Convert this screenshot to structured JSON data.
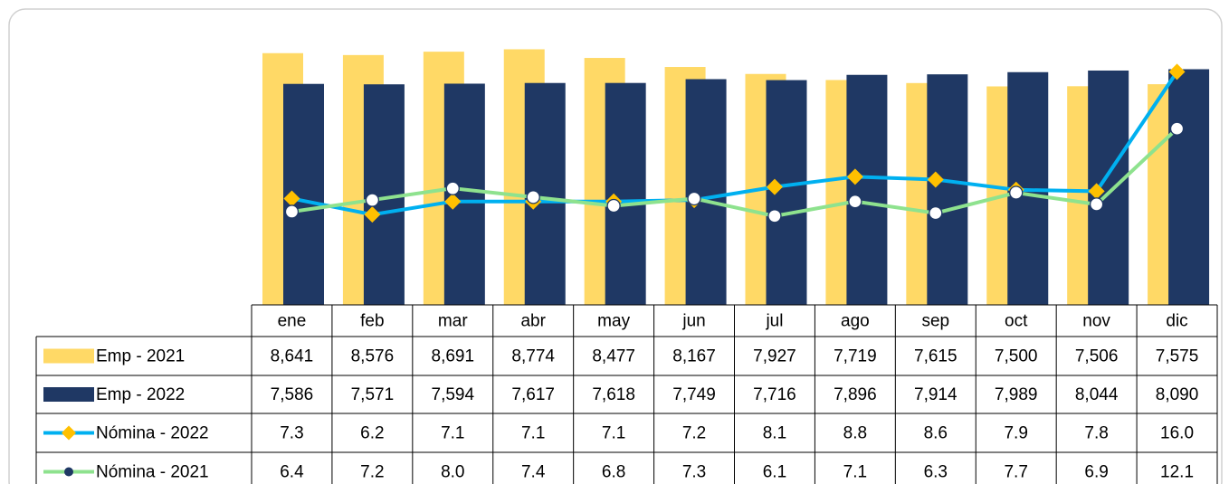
{
  "chart_data": {
    "type": "bar_line_table",
    "categories": [
      "ene",
      "feb",
      "mar",
      "abr",
      "may",
      "jun",
      "jul",
      "ago",
      "sep",
      "oct",
      "nov",
      "dic"
    ],
    "ylim": [
      0,
      10000
    ],
    "y2lim": [
      0,
      20
    ],
    "series": [
      {
        "name": "Emp - 2021",
        "kind": "bar",
        "color": "#FFD966",
        "values": [
          8641,
          8576,
          8691,
          8774,
          8477,
          8167,
          7927,
          7719,
          7615,
          7500,
          7506,
          7575
        ],
        "value_labels": [
          "8,641",
          "8,576",
          "8,691",
          "8,774",
          "8,477",
          "8,167",
          "7,927",
          "7,719",
          "7,615",
          "7,500",
          "7,506",
          "7,575"
        ]
      },
      {
        "name": "Emp - 2022",
        "kind": "bar",
        "color": "#1F3864",
        "values": [
          7586,
          7571,
          7594,
          7617,
          7618,
          7749,
          7716,
          7896,
          7914,
          7989,
          8044,
          8090
        ],
        "value_labels": [
          "7,586",
          "7,571",
          "7,594",
          "7,617",
          "7,618",
          "7,749",
          "7,716",
          "7,896",
          "7,914",
          "7,989",
          "8,044",
          "8,090"
        ]
      },
      {
        "name": "Nómina  - 2022",
        "kind": "line",
        "axis": "y2",
        "color": "#00B0F0",
        "marker_color": "#FFC000",
        "values": [
          7.3,
          6.2,
          7.1,
          7.1,
          7.1,
          7.2,
          8.1,
          8.8,
          8.6,
          7.9,
          7.8,
          16.0
        ],
        "value_labels": [
          "7.3",
          "6.2",
          "7.1",
          "7.1",
          "7.1",
          "7.2",
          "8.1",
          "8.8",
          "8.6",
          "7.9",
          "7.8",
          "16.0"
        ]
      },
      {
        "name": "Nómina  - 2021",
        "kind": "line",
        "axis": "y2",
        "color": "#8EE28E",
        "marker_color": "#1F3864",
        "values": [
          6.4,
          7.2,
          8.0,
          7.4,
          6.8,
          7.3,
          6.1,
          7.1,
          6.3,
          7.7,
          6.9,
          12.1
        ],
        "value_labels": [
          "6.4",
          "7.2",
          "8.0",
          "7.4",
          "6.8",
          "7.3",
          "6.1",
          "7.1",
          "6.3",
          "7.7",
          "6.9",
          "12.1"
        ]
      }
    ]
  }
}
